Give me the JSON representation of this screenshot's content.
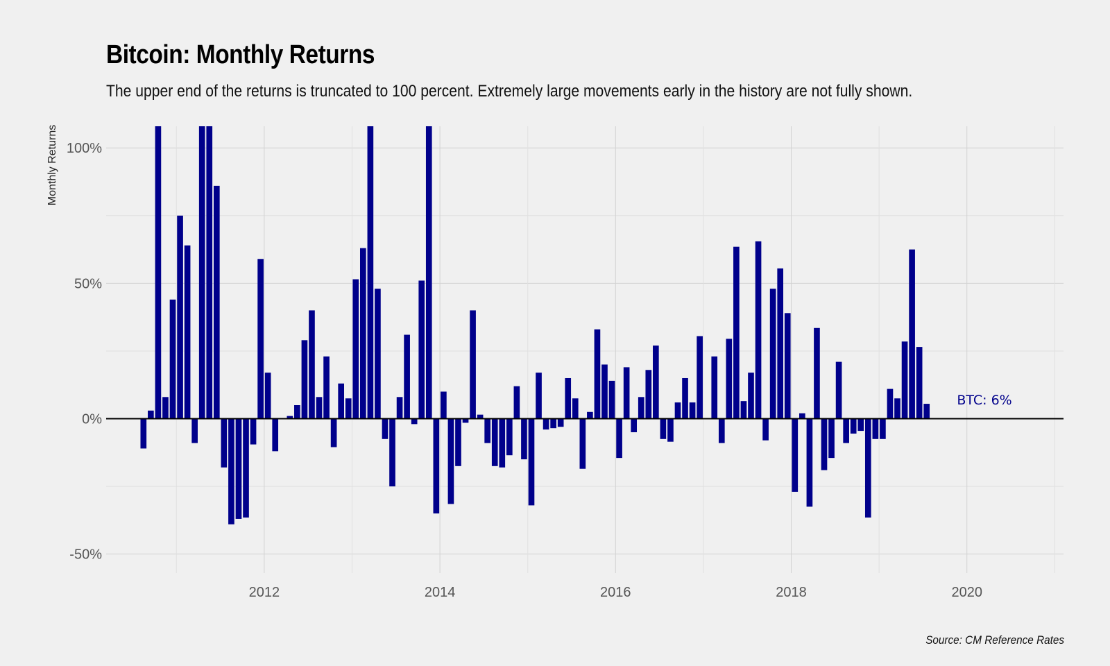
{
  "chart_data": {
    "type": "bar",
    "title": "Bitcoin: Monthly Returns",
    "subtitle": "The upper end of the returns is truncated to 100 percent. Extremely large movements early in the history are not fully shown.",
    "ylabel": "Monthly Returns",
    "xlabel": "",
    "source": "Source: CM Reference Rates",
    "annotation": "BTC: 6%",
    "ylim": [
      -0.57,
      1.08
    ],
    "xlim": [
      2010.2,
      2021.1
    ],
    "y_ticks": [
      -0.5,
      0,
      0.5,
      1.0
    ],
    "y_tick_labels": [
      "-50%",
      "0%",
      "50%",
      "100%"
    ],
    "x_ticks": [
      2012,
      2014,
      2016,
      2018,
      2020
    ],
    "x_tick_labels": [
      "2012",
      "2014",
      "2016",
      "2018",
      "2020"
    ],
    "grid": true,
    "bar_color": "#00008b",
    "series": [
      {
        "start": "2010-08",
        "values": [
          -0.11,
          0.03,
          1.08,
          0.08,
          0.44,
          0.75,
          0.64,
          -0.09,
          1.08,
          1.08,
          0.86,
          -0.18,
          -0.39,
          -0.37,
          -0.365,
          -0.095,
          0.59,
          0.17,
          -0.12,
          0.0,
          0.01,
          0.05,
          0.29,
          0.4,
          0.08,
          0.23,
          -0.105,
          0.13,
          0.075,
          0.515,
          0.63,
          1.08,
          0.48,
          -0.075,
          -0.25,
          0.08,
          0.31,
          -0.02,
          0.51,
          1.08,
          -0.35,
          0.1,
          -0.315,
          -0.175,
          -0.015,
          0.4,
          0.015,
          -0.09,
          -0.175,
          -0.18,
          -0.135,
          0.12,
          -0.15,
          -0.32,
          0.17,
          -0.04,
          -0.035,
          -0.03,
          0.15,
          0.075,
          -0.185,
          0.025,
          0.33,
          0.2,
          0.14,
          -0.145,
          0.19,
          -0.05,
          0.08,
          0.18,
          0.27,
          -0.075,
          -0.085,
          0.06,
          0.15,
          0.06,
          0.305,
          0.0,
          0.23,
          -0.09,
          0.295,
          0.635,
          0.065,
          0.17,
          0.655,
          -0.08,
          0.48,
          0.555,
          0.39,
          -0.27,
          0.02,
          -0.325,
          0.335,
          -0.19,
          -0.145,
          0.21,
          -0.09,
          -0.055,
          -0.045,
          -0.365,
          -0.075,
          -0.075,
          0.11,
          0.075,
          0.285,
          0.625,
          0.265,
          0.055
        ]
      }
    ]
  }
}
